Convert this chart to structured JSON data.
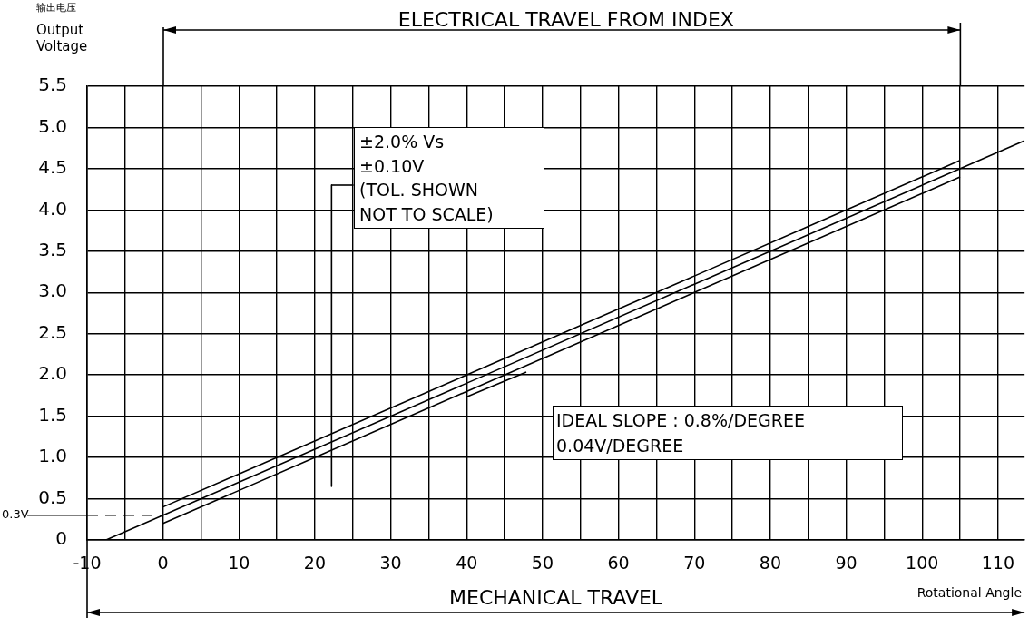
{
  "chart_data": {
    "type": "line",
    "ylabel": "Output Voltage",
    "xlabel": "Rotational Angle",
    "annotations": [
      "输出电压",
      "ELECTRICAL TRAVEL FROM INDEX",
      "±2.0% Vs\n±0.10V\n(TOL. SHOWN\nNOT TO SCALE)",
      "IDEAL SLOPE : 0.8%/DEGREE\n0.04V/DEGREE",
      "MECHANICAL TRAVEL"
    ],
    "series": [
      {
        "color": "#000000",
        "x": [
          -7.5,
          113.5
        ],
        "values": [
          0,
          4.84
        ]
      },
      {
        "color": "#000000",
        "x": [
          0,
          105
        ],
        "values": [
          0.4,
          4.6
        ]
      },
      {
        "color": "#000000",
        "x": [
          0,
          105
        ],
        "values": [
          0.2,
          4.4
        ]
      },
      {
        "color": "#000000",
        "x": [
          22.2,
          22.2
        ],
        "values": [
          4.3,
          0.65
        ]
      }
    ],
    "xlim": [
      -10,
      113.5
    ],
    "ylim": [
      0,
      5.5
    ],
    "xticks": [
      -10,
      {
        "value": -5,
        "label": null
      },
      0,
      {
        "value": 5,
        "label": null
      },
      10,
      {
        "value": 15,
        "label": null
      },
      20,
      {
        "value": 25,
        "label": null
      },
      30,
      {
        "value": 35,
        "label": null
      },
      40,
      {
        "value": 45,
        "label": null
      },
      50,
      {
        "value": 55,
        "label": null
      },
      60,
      {
        "value": 65,
        "label": null
      },
      70,
      {
        "value": 75,
        "label": null
      },
      80,
      {
        "value": 85,
        "label": null
      },
      90,
      {
        "value": 95,
        "label": null
      },
      100,
      {
        "value": 105,
        "label": null
      },
      110
    ],
    "yticks": [
      0,
      {
        "value": 0.5,
        "label": "0.5"
      },
      {
        "value": 1,
        "label": "1.0"
      },
      {
        "value": 1.5,
        "label": "1.5"
      },
      {
        "value": 2,
        "label": "2.0"
      },
      {
        "value": 2.5,
        "label": "2.5"
      },
      {
        "value": 3,
        "label": "3.0"
      },
      {
        "value": 3.5,
        "label": "3.5"
      },
      {
        "value": 4,
        "label": "4.0"
      },
      {
        "value": 4.5,
        "label": "4.5"
      },
      {
        "value": 5,
        "label": "5.0"
      },
      {
        "value": 5.5,
        "label": "5.5"
      }
    ],
    "ref_lines": [
      {
        "axis": "y",
        "value": 0.3,
        "label": "0.3V",
        "line_style": "dashed",
        "color": "#000000"
      }
    ],
    "grid": true,
    "legend": false,
    "marker": "none",
    "line_style": "solid"
  }
}
